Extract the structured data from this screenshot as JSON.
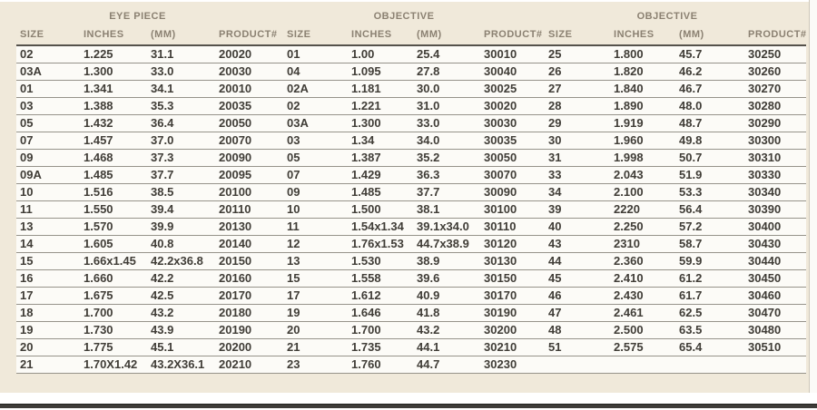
{
  "table": {
    "group_headers": [
      "EYE PIECE",
      "OBJECTIVE",
      "OBJECTIVE"
    ],
    "column_headers": [
      "SIZE",
      "INCHES",
      "(MM)",
      "PRODUCT#",
      "SIZE",
      "INCHES",
      "(MM)",
      "PRODUCT#",
      "SIZE",
      "INCHES",
      "(MM)",
      "PRODUCT#"
    ],
    "rows": [
      [
        "02",
        "1.225",
        "31.1",
        "20020",
        "01",
        "1.00",
        "25.4",
        "30010",
        "25",
        "1.800",
        "45.7",
        "30250"
      ],
      [
        "03A",
        "1.300",
        "33.0",
        "20030",
        "04",
        "1.095",
        "27.8",
        "30040",
        "26",
        "1.820",
        "46.2",
        "30260"
      ],
      [
        "01",
        "1.341",
        "34.1",
        "20010",
        "02A",
        "1.181",
        "30.0",
        "30025",
        "27",
        "1.840",
        "46.7",
        "30270"
      ],
      [
        "03",
        "1.388",
        "35.3",
        "20035",
        "02",
        "1.221",
        "31.0",
        "30020",
        "28",
        "1.890",
        "48.0",
        "30280"
      ],
      [
        "05",
        "1.432",
        "36.4",
        "20050",
        "03A",
        "1.300",
        "33.0",
        "30030",
        "29",
        "1.919",
        "48.7",
        "30290"
      ],
      [
        "07",
        "1.457",
        "37.0",
        "20070",
        "03",
        "1.34",
        "34.0",
        "30035",
        "30",
        "1.960",
        "49.8",
        "30300"
      ],
      [
        "09",
        "1.468",
        "37.3",
        "20090",
        "05",
        "1.387",
        "35.2",
        "30050",
        "31",
        "1.998",
        "50.7",
        "30310"
      ],
      [
        "09A",
        "1.485",
        "37.7",
        "20095",
        "07",
        "1.429",
        "36.3",
        "30070",
        "33",
        "2.043",
        "51.9",
        "30330"
      ],
      [
        "10",
        "1.516",
        "38.5",
        "20100",
        "09",
        "1.485",
        "37.7",
        "30090",
        "34",
        "2.100",
        "53.3",
        "30340"
      ],
      [
        "11",
        "1.550",
        "39.4",
        "20110",
        "10",
        "1.500",
        "38.1",
        "30100",
        "39",
        "2220",
        "56.4",
        "30390"
      ],
      [
        "13",
        "1.570",
        "39.9",
        "20130",
        "11",
        "1.54x1.34",
        "39.1x34.0",
        "30110",
        "40",
        "2.250",
        "57.2",
        "30400"
      ],
      [
        "14",
        "1.605",
        "40.8",
        "20140",
        "12",
        "1.76x1.53",
        "44.7x38.9",
        "30120",
        "43",
        "2310",
        "58.7",
        "30430"
      ],
      [
        "15",
        "1.66x1.45",
        "42.2x36.8",
        "20150",
        "13",
        "1.530",
        "38.9",
        "30130",
        "44",
        "2.360",
        "59.9",
        "30440"
      ],
      [
        "16",
        "1.660",
        "42.2",
        "20160",
        "15",
        "1.558",
        "39.6",
        "30150",
        "45",
        "2.410",
        "61.2",
        "30450"
      ],
      [
        "17",
        "1.675",
        "42.5",
        "20170",
        "17",
        "1.612",
        "40.9",
        "30170",
        "46",
        "2.430",
        "61.7",
        "30460"
      ],
      [
        "18",
        "1.700",
        "43.2",
        "20180",
        "19",
        "1.646",
        "41.8",
        "30190",
        "47",
        "2.461",
        "62.5",
        "30470"
      ],
      [
        "19",
        "1.730",
        "43.9",
        "20190",
        "20",
        "1.700",
        "43.2",
        "30200",
        "48",
        "2.500",
        "63.5",
        "30480"
      ],
      [
        "20",
        "1.775",
        "45.1",
        "20200",
        "21",
        "1.735",
        "44.1",
        "30210",
        "51",
        "2.575",
        "65.4",
        "30510"
      ],
      [
        "21",
        "1.70X1.42",
        "43.2X36.1",
        "20210",
        "23",
        "1.760",
        "44.7",
        "30230",
        "",
        "",
        "",
        ""
      ]
    ]
  },
  "colors": {
    "page_bg": "#f0e9da",
    "row_bg": "#fcfbf7",
    "rule": "#96938a",
    "heavy_rule": "#55524b",
    "header_text": "#8b8172",
    "body_text": "#403d37",
    "bottom_bar": "#3e3c38"
  }
}
